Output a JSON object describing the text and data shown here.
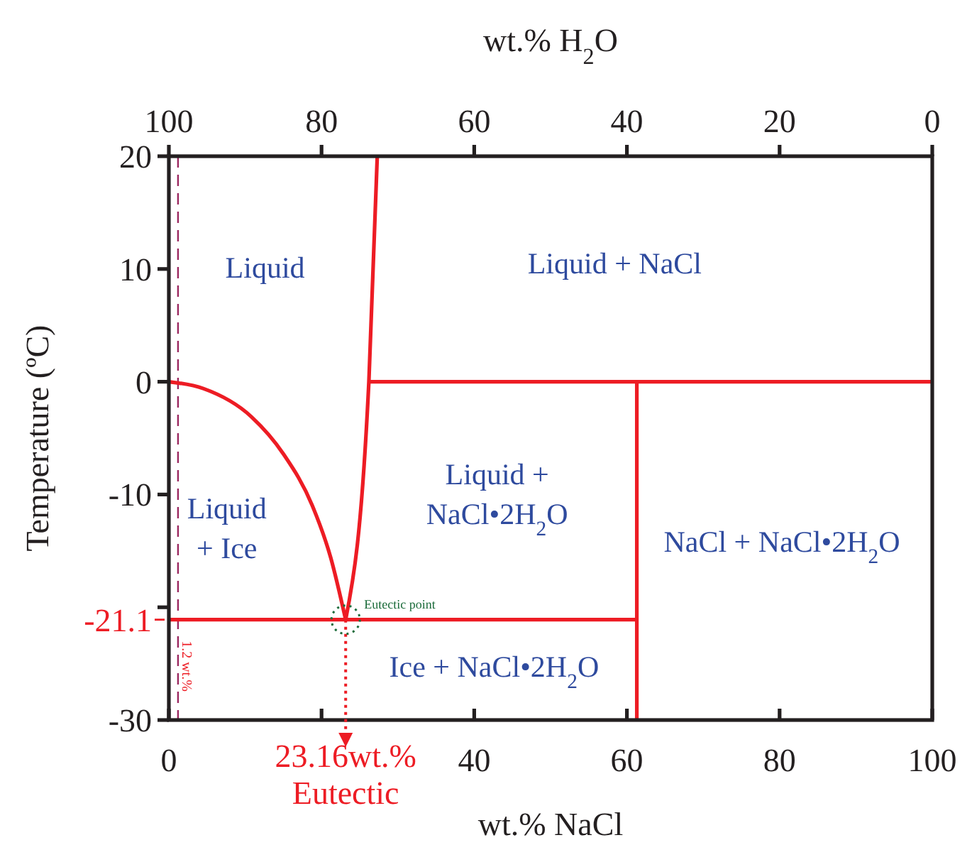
{
  "chart_data": {
    "type": "line",
    "xlabel": "wt.% NaCl",
    "ylabel": "Temperature (ºC)",
    "x2label": "wt.% H$_{2}$O",
    "xlim": [
      0,
      100
    ],
    "xticks": [
      0,
      {
        "value": 20,
        "label": null
      },
      40,
      60,
      80,
      100
    ],
    "x2lim": [
      100,
      0
    ],
    "x2ticks": [
      100,
      80,
      60,
      40,
      20,
      0
    ],
    "ylim": [
      -30,
      20
    ],
    "yticks": [
      -30,
      {
        "value": -20,
        "label": null
      },
      -10,
      0,
      10,
      20
    ],
    "grid": false,
    "line_style": "solid",
    "series": [
      {
        "color": "#ed1c24",
        "x": [
          0,
          4.5,
          10.8,
          15,
          18.8,
          21.2,
          23.16
        ],
        "values": [
          0,
          -0.6,
          -3.1,
          -6.4,
          -11,
          -15.6,
          -21.1
        ]
      },
      {
        "color": "#ed1c24",
        "x": [
          23.16,
          26.2,
          27.3
        ],
        "values": [
          -21.1,
          0,
          20
        ]
      },
      {
        "color": "#ed1c24",
        "x": [
          0,
          61.3
        ],
        "values": [
          -21.1,
          -21.1
        ]
      },
      {
        "color": "#ed1c24",
        "x": [
          26.2,
          100
        ],
        "values": [
          0,
          0
        ]
      },
      {
        "color": "#ed1c24",
        "x": [
          61.3,
          61.3
        ],
        "values": [
          -30,
          0
        ]
      }
    ],
    "ref_lines": [
      {
        "axis": "y",
        "value": -21.1,
        "label": "-21.1",
        "color": "#ed1c24"
      },
      {
        "axis": "x",
        "value": 1.2,
        "label": "1.2 wt.%",
        "color": "#9b2860",
        "line_style": "dashed"
      }
    ],
    "annotations": [
      {
        "text": "23.16wt.%\nEutectic",
        "x": 23.16,
        "y": -21.1
      },
      {
        "text": "Eutectic point",
        "x": 23.16,
        "y": -21.1
      },
      "Liquid",
      "Liquid + NaCl",
      "Liquid +\nNaCl•2H$_{2}$O",
      "Liquid\n+ Ice",
      "NaCl + NaCl•2H$_{2}$O",
      "Ice + NaCl•2H$_{2}$O"
    ]
  }
}
